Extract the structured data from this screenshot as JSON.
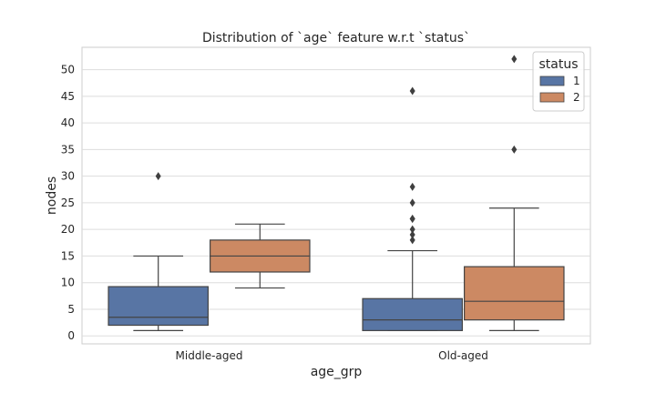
{
  "chart_data": {
    "type": "box",
    "title": "Distribution of `age` feature w.r.t `status`",
    "xlabel": "age_grp",
    "ylabel": "nodes",
    "categories": [
      "Middle-aged",
      "Old-aged"
    ],
    "ylim": [
      -1.5,
      54.2
    ],
    "yticks": [
      0,
      5,
      10,
      15,
      20,
      25,
      30,
      35,
      40,
      45,
      50
    ],
    "grid": "horizontal",
    "legend": {
      "title": "status",
      "position": "top-right"
    },
    "series": [
      {
        "name": "1",
        "color": "#5875a4",
        "boxes": [
          {
            "category": "Middle-aged",
            "whisker_low": 1,
            "q1": 2,
            "median": 3.5,
            "q3": 9.25,
            "whisker_high": 15,
            "outliers": [
              30
            ]
          },
          {
            "category": "Old-aged",
            "whisker_low": 1,
            "q1": 1,
            "median": 3,
            "q3": 7,
            "whisker_high": 16,
            "outliers": [
              18,
              19,
              20,
              22,
              22,
              25,
              28,
              46
            ]
          }
        ]
      },
      {
        "name": "2",
        "color": "#cc8963",
        "boxes": [
          {
            "category": "Middle-aged",
            "whisker_low": 9,
            "q1": 12,
            "median": 15,
            "q3": 18,
            "whisker_high": 21,
            "outliers": []
          },
          {
            "category": "Old-aged",
            "whisker_low": 1,
            "q1": 3,
            "median": 6.5,
            "q3": 13,
            "whisker_high": 24,
            "outliers": [
              35,
              52
            ]
          }
        ]
      }
    ]
  }
}
